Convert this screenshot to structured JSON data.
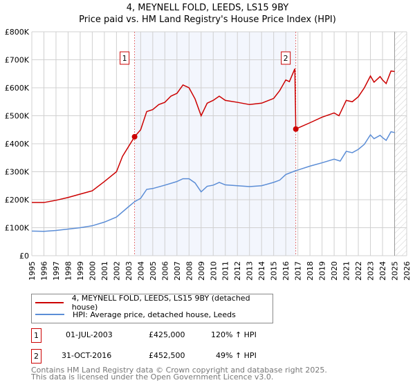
{
  "chart_data": {
    "type": "line",
    "title": "4, MEYNELL FOLD, LEEDS, LS15 9BY",
    "subtitle": "Price paid vs. HM Land Registry's House Price Index (HPI)",
    "xlim": [
      1995,
      2026
    ],
    "ylim": [
      0,
      800000
    ],
    "x_ticks": [
      "1995",
      "1996",
      "1997",
      "1998",
      "1999",
      "2000",
      "2001",
      "2002",
      "2003",
      "2004",
      "2005",
      "2006",
      "2007",
      "2008",
      "2009",
      "2010",
      "2011",
      "2012",
      "2013",
      "2014",
      "2015",
      "2016",
      "2017",
      "2018",
      "2019",
      "2020",
      "2021",
      "2022",
      "2023",
      "2024",
      "2025",
      "2026"
    ],
    "y_ticks": [
      {
        "v": 0,
        "label": "£0"
      },
      {
        "v": 100000,
        "label": "£100K"
      },
      {
        "v": 200000,
        "label": "£200K"
      },
      {
        "v": 300000,
        "label": "£300K"
      },
      {
        "v": 400000,
        "label": "£400K"
      },
      {
        "v": 500000,
        "label": "£500K"
      },
      {
        "v": 600000,
        "label": "£600K"
      },
      {
        "v": 700000,
        "label": "£700K"
      },
      {
        "v": 800000,
        "label": "£800K"
      }
    ],
    "grid": true,
    "shaded_range": [
      2003.5,
      2016.83
    ],
    "forecast_hatch_from": 2025.0,
    "series": [
      {
        "name": "4, MEYNELL FOLD, LEEDS, LS15 9BY (detached house)",
        "color": "#cc0000",
        "x": [
          1995,
          1996,
          1997,
          1998,
          1999,
          2000,
          2001,
          2002,
          2002.5,
          2003.5,
          2004,
          2004.5,
          2005,
          2005.5,
          2006,
          2006.5,
          2007,
          2007.5,
          2008,
          2008.5,
          2009,
          2009.5,
          2010,
          2010.5,
          2011,
          2012,
          2013,
          2014,
          2015,
          2015.5,
          2016,
          2016.3,
          2016.75,
          2016.83,
          2017,
          2018,
          2019,
          2020,
          2020.4,
          2021,
          2021.5,
          2022,
          2022.5,
          2023,
          2023.3,
          2023.8,
          2024,
          2024.3,
          2024.7,
          2025
        ],
        "y": [
          190000,
          190000,
          198000,
          208000,
          220000,
          232000,
          265000,
          300000,
          355000,
          425000,
          450000,
          515000,
          522000,
          540000,
          548000,
          570000,
          580000,
          610000,
          600000,
          560000,
          500000,
          545000,
          555000,
          570000,
          555000,
          548000,
          540000,
          545000,
          562000,
          590000,
          628000,
          622000,
          668000,
          452500,
          456000,
          475000,
          495000,
          510000,
          500000,
          555000,
          550000,
          568000,
          600000,
          642000,
          620000,
          640000,
          628000,
          615000,
          660000,
          658000
        ]
      },
      {
        "name": "HPI: Average price, detached house, Leeds",
        "color": "#5b8dd6",
        "x": [
          1995,
          1996,
          1997,
          1998,
          1999,
          2000,
          2001,
          2002,
          2003,
          2003.5,
          2004,
          2004.5,
          2005,
          2006,
          2007,
          2007.5,
          2008,
          2008.5,
          2009,
          2009.5,
          2010,
          2010.5,
          2011,
          2012,
          2013,
          2014,
          2015,
          2015.5,
          2016,
          2016.83,
          2017,
          2018,
          2019,
          2020,
          2020.5,
          2021,
          2021.5,
          2022,
          2022.5,
          2023,
          2023.3,
          2023.8,
          2024,
          2024.3,
          2024.7,
          2025
        ],
        "y": [
          88000,
          87000,
          90000,
          95000,
          100000,
          107000,
          120000,
          138000,
          175000,
          193000,
          205000,
          237000,
          240000,
          252000,
          265000,
          275000,
          275000,
          260000,
          228000,
          248000,
          252000,
          262000,
          253000,
          250000,
          247000,
          250000,
          262000,
          270000,
          290000,
          304000,
          306000,
          320000,
          332000,
          345000,
          338000,
          373000,
          368000,
          380000,
          398000,
          432000,
          418000,
          430000,
          422000,
          412000,
          443000,
          440000
        ]
      }
    ],
    "sales": [
      {
        "label": "1",
        "x": 2003.5,
        "y": 425000,
        "date": "01-JUL-2003",
        "price": "£425,000",
        "hpi": "120% ↑ HPI"
      },
      {
        "label": "2",
        "x": 2016.83,
        "y": 452500,
        "date": "31-OCT-2016",
        "price": "£452,500",
        "hpi": "49% ↑ HPI"
      }
    ]
  },
  "footer": {
    "line1": "Contains HM Land Registry data © Crown copyright and database right 2025.",
    "line2": "This data is licensed under the Open Government Licence v3.0."
  }
}
